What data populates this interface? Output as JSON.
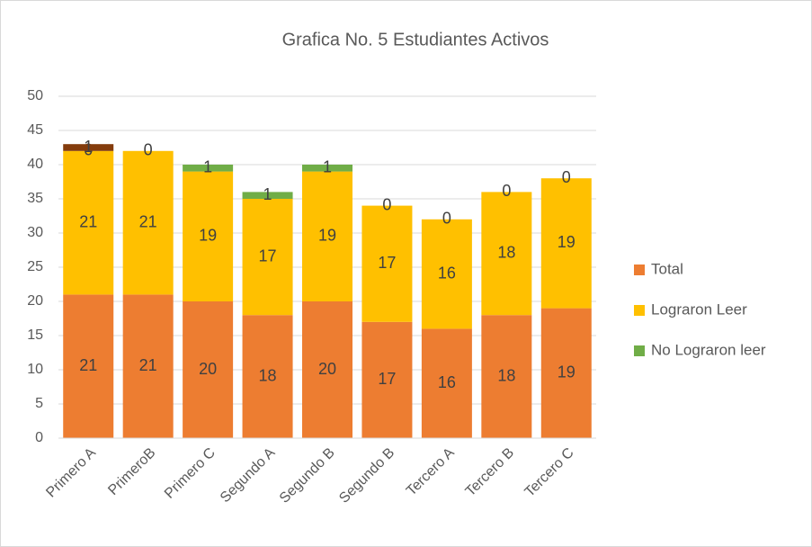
{
  "chart_data": {
    "type": "stacked_bar",
    "title": "Grafica  No. 5 Estudiantes Activos",
    "categories": [
      "Primero A",
      "PrimeroB",
      "Primero C",
      "Segundo A",
      "Segundo B",
      "Segundo B",
      "Tercero A",
      "Tercero B",
      "Tercero C"
    ],
    "series": [
      {
        "name": "Total",
        "color": "#ED7D31",
        "values": [
          21,
          21,
          20,
          18,
          20,
          17,
          16,
          18,
          19
        ]
      },
      {
        "name": "Lograron Leer",
        "color": "#FFC000",
        "values": [
          21,
          21,
          19,
          17,
          19,
          17,
          16,
          18,
          19
        ]
      },
      {
        "name": "No Lograron leer",
        "color": "#70AD47",
        "values": [
          0,
          0,
          1,
          1,
          1,
          0,
          0,
          0,
          0
        ]
      },
      {
        "color": "#843C0C",
        "values": [
          1,
          null,
          null,
          null,
          null,
          null,
          null,
          null,
          null
        ]
      }
    ],
    "ylim": [
      0,
      50
    ],
    "yticks": [
      0,
      5,
      10,
      15,
      20,
      25,
      30,
      35,
      40,
      45,
      50
    ],
    "grid": true,
    "legend": "right"
  }
}
